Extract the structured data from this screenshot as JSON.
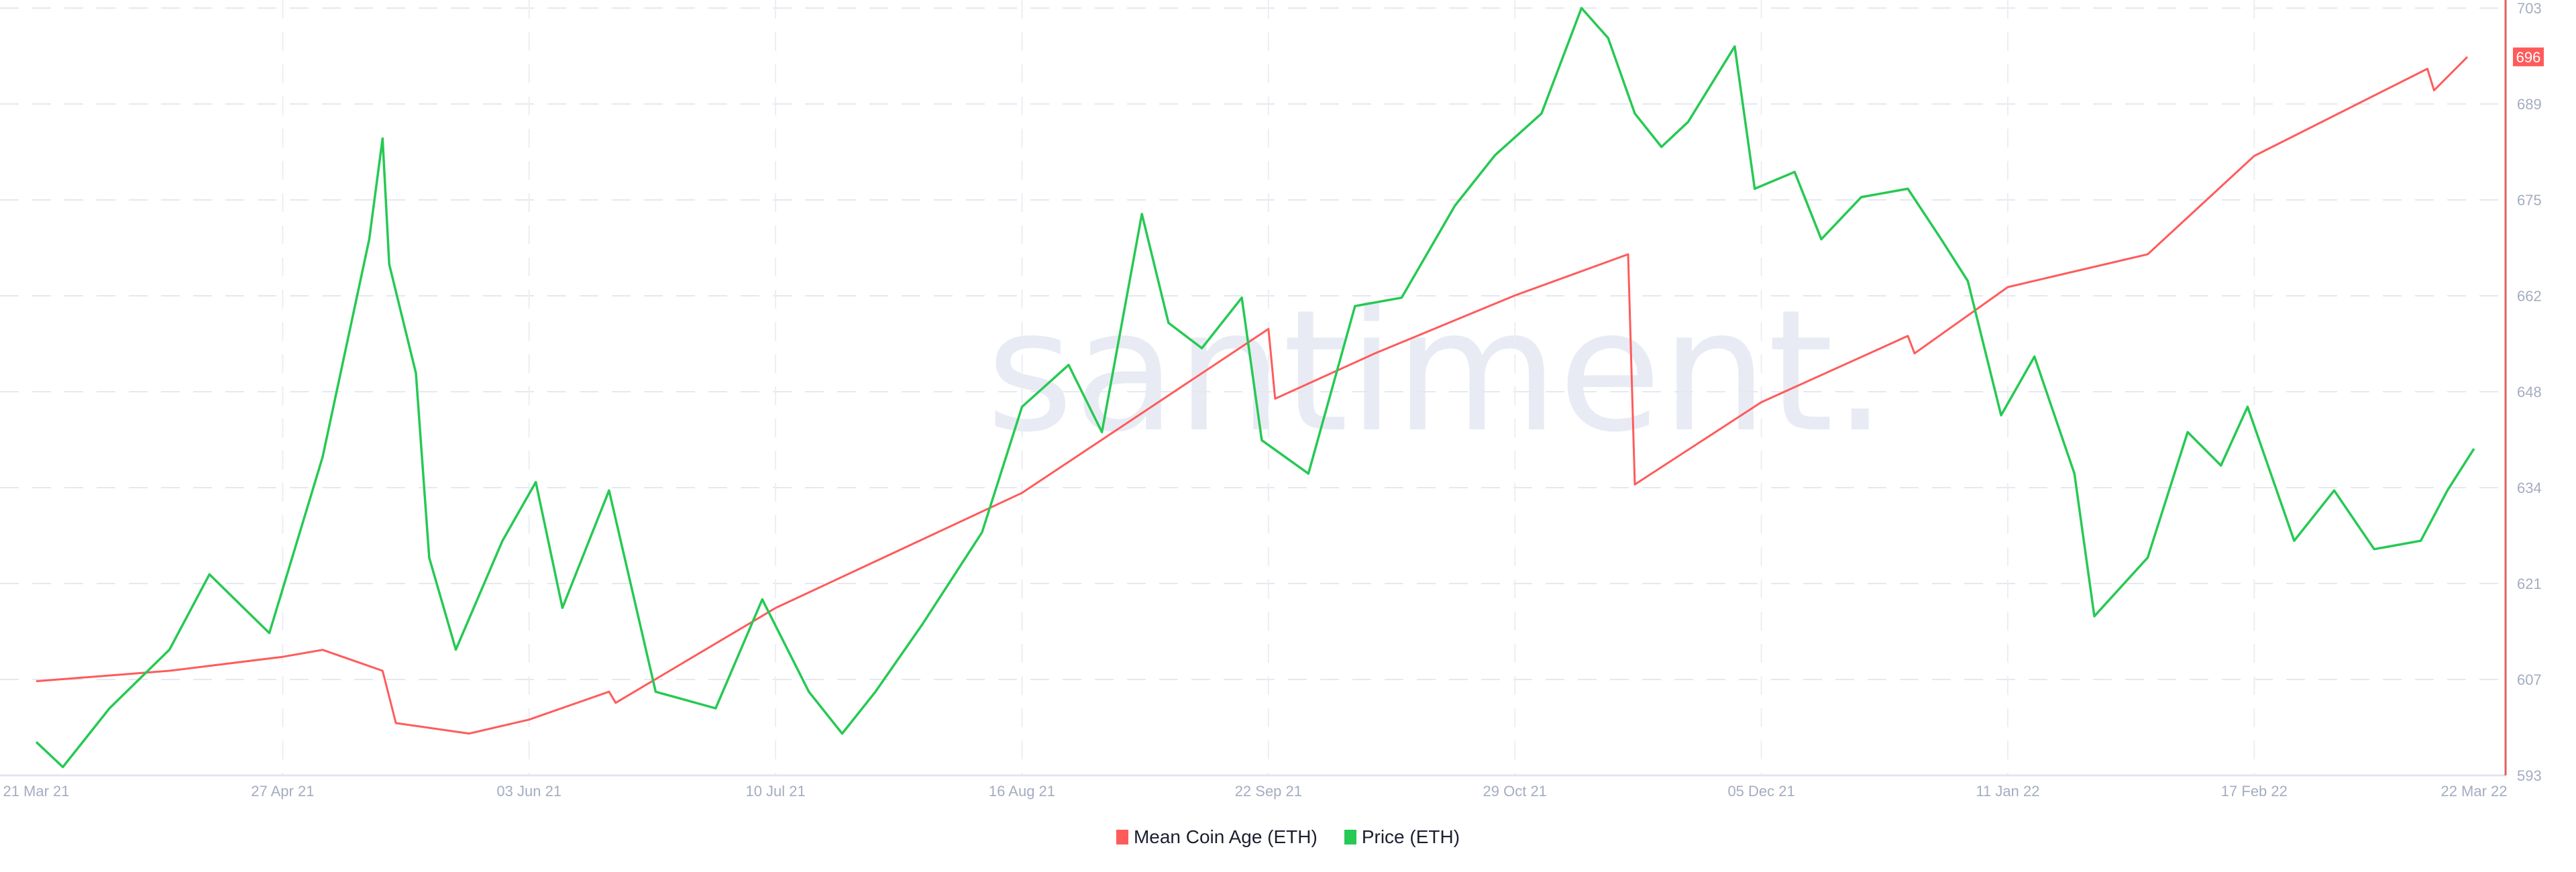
{
  "chart_data": {
    "type": "line",
    "title": "",
    "watermark": "santiment.",
    "x_ticks": [
      "21 Mar 21",
      "27 Apr 21",
      "03 Jun 21",
      "10 Jul 21",
      "16 Aug 21",
      "22 Sep 21",
      "29 Oct 21",
      "05 Dec 21",
      "11 Jan 22",
      "17 Feb 22",
      "22 Mar 22"
    ],
    "x_tick_dates": [
      "2021-03-21",
      "2021-04-27",
      "2021-06-03",
      "2021-07-10",
      "2021-08-16",
      "2021-09-22",
      "2021-10-29",
      "2021-12-05",
      "2022-01-11",
      "2022-02-17",
      "2022-03-22"
    ],
    "y_ticks": [
      "703",
      "689",
      "675",
      "662",
      "648",
      "634",
      "621",
      "607",
      "593"
    ],
    "ylim": [
      593,
      703
    ],
    "grid": true,
    "legend_placement": "bottom",
    "last_value_badge": "696",
    "series": [
      {
        "name": "Mean Coin Age (ETH)",
        "color": "#ff5b5b",
        "axis": "right",
        "points": [
          [
            "2021-03-21",
            606.5
          ],
          [
            "2021-04-10",
            608
          ],
          [
            "2021-04-27",
            610
          ],
          [
            "2021-05-03",
            611
          ],
          [
            "2021-05-12",
            608
          ],
          [
            "2021-05-14",
            600.5
          ],
          [
            "2021-05-25",
            599
          ],
          [
            "2021-06-03",
            601
          ],
          [
            "2021-06-15",
            605
          ],
          [
            "2021-06-16",
            603.4
          ],
          [
            "2021-07-10",
            617
          ],
          [
            "2021-08-16",
            633.5
          ],
          [
            "2021-09-22",
            657
          ],
          [
            "2021-09-23",
            647
          ],
          [
            "2021-10-08",
            653.5
          ],
          [
            "2021-10-29",
            661.8
          ],
          [
            "2021-11-15",
            667.7
          ],
          [
            "2021-11-16",
            634.7
          ],
          [
            "2021-12-05",
            646.5
          ],
          [
            "2021-12-27",
            656
          ],
          [
            "2021-12-28",
            653.5
          ],
          [
            "2022-01-11",
            663
          ],
          [
            "2022-02-01",
            667.7
          ],
          [
            "2022-02-17",
            681.8
          ],
          [
            "2022-03-15",
            694.3
          ],
          [
            "2022-03-16",
            691.2
          ],
          [
            "2022-03-21",
            696
          ]
        ]
      },
      {
        "name": "Price (ETH)",
        "color": "#26c953",
        "axis": "hidden",
        "ylim": [
          1700,
          4800
        ],
        "points": [
          [
            "2021-03-21",
            1835
          ],
          [
            "2021-03-25",
            1734
          ],
          [
            "2021-04-01",
            1971
          ],
          [
            "2021-04-10",
            2208
          ],
          [
            "2021-04-16",
            2512
          ],
          [
            "2021-04-25",
            2275
          ],
          [
            "2021-05-03",
            2986
          ],
          [
            "2021-05-10",
            3866
          ],
          [
            "2021-05-12",
            4273
          ],
          [
            "2021-05-13",
            3765
          ],
          [
            "2021-05-17",
            3325
          ],
          [
            "2021-05-19",
            2580
          ],
          [
            "2021-05-23",
            2208
          ],
          [
            "2021-05-30",
            2648
          ],
          [
            "2021-06-04",
            2885
          ],
          [
            "2021-06-08",
            2377
          ],
          [
            "2021-06-15",
            2851
          ],
          [
            "2021-06-22",
            2038
          ],
          [
            "2021-07-01",
            1971
          ],
          [
            "2021-07-08",
            2411
          ],
          [
            "2021-07-15",
            2038
          ],
          [
            "2021-07-20",
            1869
          ],
          [
            "2021-07-25",
            2038
          ],
          [
            "2021-08-01",
            2309
          ],
          [
            "2021-08-10",
            2682
          ],
          [
            "2021-08-16",
            3189
          ],
          [
            "2021-08-23",
            3358
          ],
          [
            "2021-08-28",
            3087
          ],
          [
            "2021-09-03",
            3968
          ],
          [
            "2021-09-07",
            3528
          ],
          [
            "2021-09-12",
            3426
          ],
          [
            "2021-09-18",
            3630
          ],
          [
            "2021-09-21",
            3054
          ],
          [
            "2021-09-28",
            2919
          ],
          [
            "2021-10-05",
            3596
          ],
          [
            "2021-10-12",
            3630
          ],
          [
            "2021-10-20",
            4002
          ],
          [
            "2021-10-26",
            4205
          ],
          [
            "2021-11-02",
            4374
          ],
          [
            "2021-11-08",
            4800
          ],
          [
            "2021-11-12",
            4679
          ],
          [
            "2021-11-16",
            4374
          ],
          [
            "2021-11-20",
            4239
          ],
          [
            "2021-11-24",
            4340
          ],
          [
            "2021-12-01",
            4645
          ],
          [
            "2021-12-04",
            4070
          ],
          [
            "2021-12-10",
            4138
          ],
          [
            "2021-12-14",
            3866
          ],
          [
            "2021-12-20",
            4036
          ],
          [
            "2021-12-27",
            4070
          ],
          [
            "2022-01-01",
            3866
          ],
          [
            "2022-01-05",
            3697
          ],
          [
            "2022-01-10",
            3155
          ],
          [
            "2022-01-15",
            3392
          ],
          [
            "2022-01-21",
            2919
          ],
          [
            "2022-01-24",
            2343
          ],
          [
            "2022-02-01",
            2580
          ],
          [
            "2022-02-07",
            3087
          ],
          [
            "2022-02-12",
            2952
          ],
          [
            "2022-02-16",
            3189
          ],
          [
            "2022-02-23",
            2648
          ],
          [
            "2022-03-01",
            2851
          ],
          [
            "2022-03-07",
            2614
          ],
          [
            "2022-03-14",
            2648
          ],
          [
            "2022-03-18",
            2851
          ],
          [
            "2022-03-22",
            3020
          ]
        ]
      }
    ]
  }
}
